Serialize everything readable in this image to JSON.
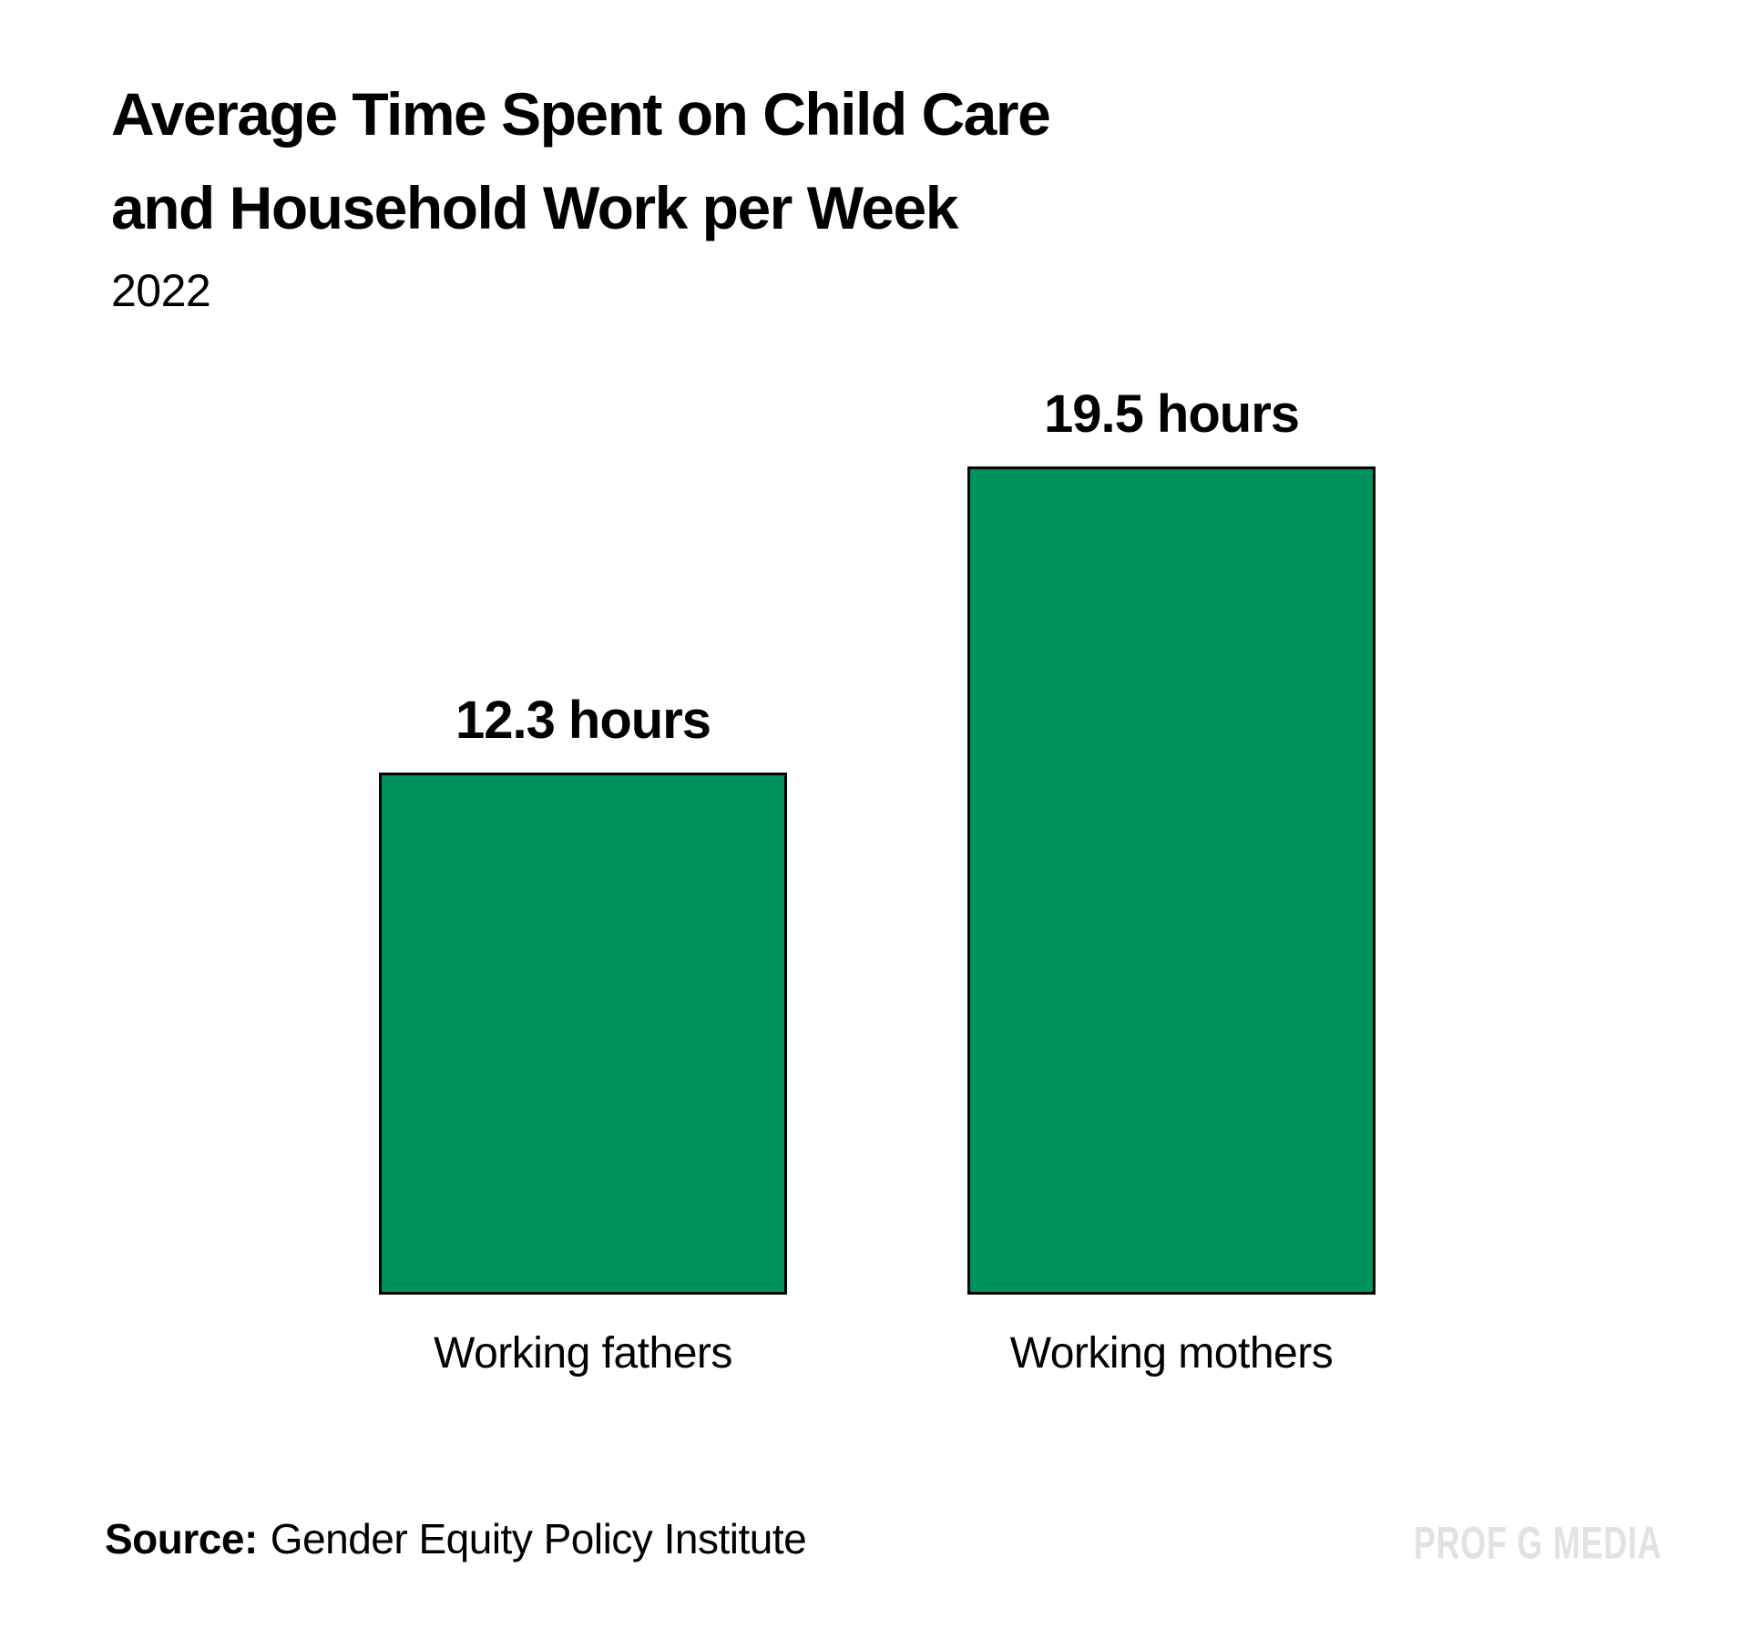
{
  "title": {
    "line1": "Average Time Spent on Child Care",
    "line2": "and Household Work per Week",
    "year": "2022"
  },
  "chart_data": {
    "type": "bar",
    "orientation": "vertical",
    "title": "Average Time Spent on Child Care and Household Work per Week",
    "subtitle": "2022",
    "categories": [
      "Working fathers",
      "Working mothers"
    ],
    "values": [
      12.3,
      19.5
    ],
    "value_labels": [
      "12.3 hours",
      "19.5 hours"
    ],
    "unit": "hours",
    "ylim": [
      0,
      19.5
    ],
    "grid": false,
    "legend": false,
    "axes_shown": false,
    "bar_color": "#00925C",
    "bar_border_color": "#000000",
    "source": "Gender Equity Policy Institute"
  },
  "source": {
    "label": "Source:",
    "text": "Gender Equity Policy Institute"
  },
  "watermark": "PROF G MEDIA"
}
